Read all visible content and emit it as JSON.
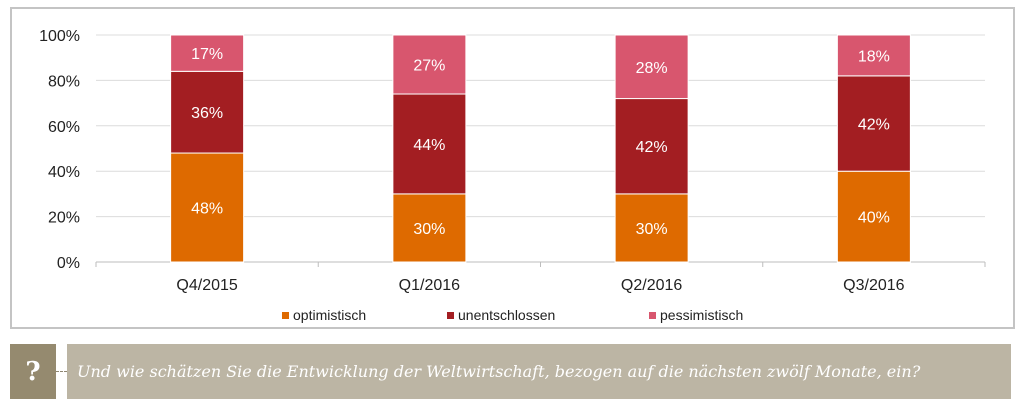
{
  "chart_data": {
    "type": "bar",
    "stacked": true,
    "percent": true,
    "categories": [
      "Q4/2015",
      "Q1/2016",
      "Q2/2016",
      "Q3/2016"
    ],
    "series": [
      {
        "name": "optimistisch",
        "color": "#de6a00",
        "values": [
          48,
          30,
          30,
          40
        ],
        "labels": [
          "48%",
          "30%",
          "30%",
          "40%"
        ]
      },
      {
        "name": "unentschlossen",
        "color": "#a31e22",
        "values": [
          36,
          44,
          42,
          42
        ],
        "labels": [
          "36%",
          "44%",
          "42%",
          "42%"
        ]
      },
      {
        "name": "pessimistisch",
        "color": "#d8566e",
        "values": [
          17,
          27,
          28,
          18
        ],
        "labels": [
          "17%",
          "27%",
          "28%",
          "18%"
        ]
      }
    ],
    "yticks": [
      "0%",
      "20%",
      "40%",
      "60%",
      "80%",
      "100%"
    ],
    "ytick_values": [
      0,
      20,
      40,
      60,
      80,
      100
    ],
    "ylim": [
      0,
      100
    ],
    "title": "",
    "xlabel": "",
    "ylabel": "",
    "grid": true,
    "legend_position": "bottom"
  },
  "legend": {
    "items": [
      {
        "label": "optimistisch",
        "color": "#de6a00"
      },
      {
        "label": "unentschlossen",
        "color": "#a31e22"
      },
      {
        "label": "pessimistisch",
        "color": "#d8566e"
      }
    ]
  },
  "question": {
    "icon": "question-mark-icon",
    "icon_glyph": "?",
    "text": "Und wie schätzen Sie die Entwicklung der Weltwirtschaft, bezogen auf die nächsten zwölf Monate, ein?"
  }
}
